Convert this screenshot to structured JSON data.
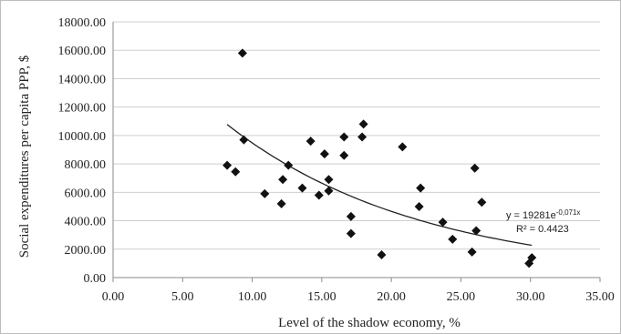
{
  "chart_data": {
    "type": "scatter",
    "xlabel": "Level of the shadow economy, %",
    "ylabel": "Social expenditures per capita PPP, $",
    "xlim": [
      0,
      35
    ],
    "ylim": [
      0,
      18000
    ],
    "x_ticks": [
      "0.00",
      "5.00",
      "10.00",
      "15.00",
      "20.00",
      "25.00",
      "30.00",
      "35.00"
    ],
    "y_ticks": [
      "0.00",
      "2000.00",
      "4000.00",
      "6000.00",
      "8000.00",
      "10000.00",
      "12000.00",
      "14000.00",
      "16000.00",
      "18000.00"
    ],
    "grid": "horizontal",
    "marker": "diamond",
    "marker_color": "#111111",
    "points": [
      {
        "x": 8.2,
        "y": 7900
      },
      {
        "x": 8.8,
        "y": 7450
      },
      {
        "x": 9.3,
        "y": 15800
      },
      {
        "x": 9.4,
        "y": 9700
      },
      {
        "x": 10.9,
        "y": 5900
      },
      {
        "x": 12.1,
        "y": 5200
      },
      {
        "x": 12.2,
        "y": 6900
      },
      {
        "x": 12.6,
        "y": 7900
      },
      {
        "x": 13.6,
        "y": 6300
      },
      {
        "x": 14.2,
        "y": 9600
      },
      {
        "x": 14.8,
        "y": 5800
      },
      {
        "x": 15.2,
        "y": 8700
      },
      {
        "x": 15.5,
        "y": 6100
      },
      {
        "x": 15.5,
        "y": 6900
      },
      {
        "x": 16.6,
        "y": 8600
      },
      {
        "x": 16.6,
        "y": 9900
      },
      {
        "x": 17.1,
        "y": 4300
      },
      {
        "x": 17.1,
        "y": 3100
      },
      {
        "x": 17.9,
        "y": 9900
      },
      {
        "x": 18.0,
        "y": 10800
      },
      {
        "x": 19.3,
        "y": 1600
      },
      {
        "x": 20.8,
        "y": 9200
      },
      {
        "x": 22.0,
        "y": 5000
      },
      {
        "x": 22.1,
        "y": 6300
      },
      {
        "x": 23.7,
        "y": 3900
      },
      {
        "x": 24.4,
        "y": 2700
      },
      {
        "x": 25.8,
        "y": 1800
      },
      {
        "x": 26.0,
        "y": 7700
      },
      {
        "x": 26.1,
        "y": 3300
      },
      {
        "x": 26.5,
        "y": 5300
      },
      {
        "x": 29.9,
        "y": 1000
      },
      {
        "x": 30.1,
        "y": 1400
      }
    ],
    "trendline": {
      "type": "exponential",
      "a": 19281,
      "b": -0.071,
      "x_range": [
        8.2,
        30.1
      ],
      "equation_label": "y = 19281e",
      "equation_exponent": "-0,071x",
      "r2_label": "R² = 0.4423"
    }
  }
}
